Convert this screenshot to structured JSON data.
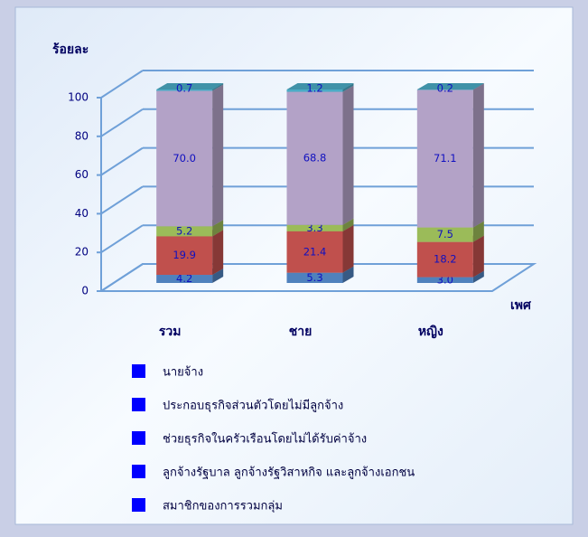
{
  "chart_data": {
    "type": "bar3d-stacked",
    "y_label": "ร้อยละ",
    "x_label": "เพศ",
    "categories": [
      "รวม",
      "ชาย",
      "หญิง"
    ],
    "series": [
      {
        "name": "นายจ้าง",
        "color": "#4f81bd",
        "values": [
          4.2,
          5.3,
          3.0
        ],
        "value_labels": [
          "4.2",
          "5.3",
          "3.0"
        ]
      },
      {
        "name": "ประกอบธุรกิจส่วนตัวโดยไม่มีลูกจ้าง",
        "color": "#c0504d",
        "values": [
          19.9,
          21.4,
          18.2
        ],
        "value_labels": [
          "19.9",
          "21.4",
          "18.2"
        ]
      },
      {
        "name": "ช่วยธุรกิจในครัวเรือนโดยไม่ได้รับค่าจ้าง",
        "color": "#9bbb59",
        "values": [
          5.2,
          3.3,
          7.5
        ],
        "value_labels": [
          "5.2",
          "3.3",
          "7.5"
        ]
      },
      {
        "name": "ลูกจ้างรัฐบาล ลูกจ้างรัฐวิสาหกิจ และลูกจ้างเอกชน",
        "color": "#b3a2c7",
        "values": [
          70.0,
          68.8,
          71.1
        ],
        "value_labels": [
          "70.0",
          "68.8",
          "71.1"
        ]
      },
      {
        "name": "สมาชิกของการรวมกลุ่ม",
        "color": "#4bacc6",
        "values": [
          0.7,
          1.2,
          0.2
        ],
        "value_labels": [
          "0.7",
          "1.2",
          "0.2"
        ]
      }
    ],
    "legend_marker_color": "#0000ff",
    "ylim": [
      0,
      100
    ],
    "yticks": [
      0,
      20,
      40,
      60,
      80,
      100
    ],
    "grid": true
  }
}
